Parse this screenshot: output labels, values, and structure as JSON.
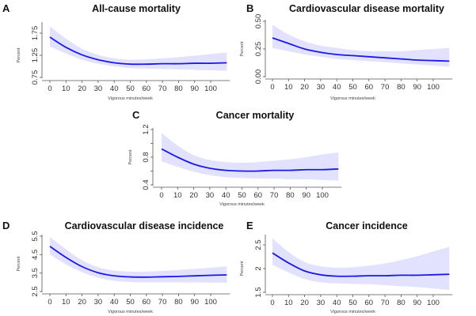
{
  "chart_data": [
    {
      "type": "line",
      "panel": "A",
      "title": "All-cause mortality",
      "xlabel": "Vigorous minutes/week",
      "ylabel": "Percent",
      "xticks": [
        0,
        10,
        20,
        30,
        40,
        50,
        60,
        70,
        80,
        90,
        100
      ],
      "yticks": [
        0.75,
        1.25,
        1.75
      ],
      "ytick_labels": [
        "0.75",
        "1.25",
        "1.75"
      ],
      "xlim": [
        0,
        110
      ],
      "ylim": [
        0.75,
        1.75
      ],
      "series": [
        {
          "name": "estimate",
          "x": [
            0,
            10,
            20,
            30,
            40,
            50,
            60,
            70,
            80,
            90,
            100,
            110
          ],
          "y": [
            1.66,
            1.43,
            1.26,
            1.15,
            1.08,
            1.05,
            1.05,
            1.06,
            1.06,
            1.07,
            1.07,
            1.08
          ]
        }
      ],
      "ci_lower": [
        1.45,
        1.29,
        1.15,
        1.06,
        1.0,
        0.96,
        0.95,
        0.94,
        0.93,
        0.92,
        0.91,
        0.9
      ],
      "ci_upper": [
        1.9,
        1.63,
        1.4,
        1.26,
        1.18,
        1.15,
        1.16,
        1.18,
        1.21,
        1.24,
        1.28,
        1.31
      ]
    },
    {
      "type": "line",
      "panel": "B",
      "title": "Cardiovascular disease mortality",
      "xlabel": "Vigorous minutes/week",
      "ylabel": "Percent",
      "xticks": [
        0,
        10,
        20,
        30,
        40,
        50,
        60,
        70,
        80,
        90,
        100
      ],
      "yticks": [
        0.0,
        0.25,
        0.5
      ],
      "ytick_labels": [
        "0.00",
        "0.25",
        "0.50"
      ],
      "xlim": [
        0,
        110
      ],
      "ylim": [
        0.0,
        0.5
      ],
      "series": [
        {
          "name": "estimate",
          "x": [
            0,
            10,
            20,
            30,
            40,
            50,
            60,
            70,
            80,
            90,
            100,
            110
          ],
          "y": [
            0.35,
            0.3,
            0.25,
            0.22,
            0.2,
            0.19,
            0.18,
            0.17,
            0.16,
            0.15,
            0.145,
            0.14
          ]
        }
      ],
      "ci_lower": [
        0.26,
        0.23,
        0.2,
        0.18,
        0.16,
        0.15,
        0.14,
        0.13,
        0.12,
        0.11,
        0.1,
        0.09
      ],
      "ci_upper": [
        0.47,
        0.38,
        0.32,
        0.28,
        0.26,
        0.24,
        0.23,
        0.23,
        0.23,
        0.24,
        0.25,
        0.26
      ]
    },
    {
      "type": "line",
      "panel": "C",
      "title": "Cancer mortality",
      "xlabel": "Vigorous minutes/week",
      "ylabel": "Percent",
      "xticks": [
        0,
        10,
        20,
        30,
        40,
        50,
        60,
        70,
        80,
        90,
        100
      ],
      "yticks": [
        0.4,
        0.6,
        0.8,
        1.0,
        1.2
      ],
      "ytick_labels": [
        "0.4",
        "",
        "0.8",
        "",
        "1.2"
      ],
      "xlim": [
        0,
        110
      ],
      "ylim": [
        0.4,
        1.2
      ],
      "series": [
        {
          "name": "estimate",
          "x": [
            0,
            10,
            20,
            30,
            40,
            50,
            60,
            70,
            80,
            90,
            100,
            110
          ],
          "y": [
            0.92,
            0.8,
            0.7,
            0.64,
            0.61,
            0.6,
            0.6,
            0.61,
            0.61,
            0.62,
            0.62,
            0.63
          ]
        }
      ],
      "ci_lower": [
        0.74,
        0.66,
        0.59,
        0.54,
        0.51,
        0.5,
        0.49,
        0.49,
        0.48,
        0.48,
        0.47,
        0.46
      ],
      "ci_upper": [
        1.15,
        0.97,
        0.83,
        0.76,
        0.73,
        0.72,
        0.73,
        0.75,
        0.77,
        0.8,
        0.84,
        0.87
      ]
    },
    {
      "type": "line",
      "panel": "D",
      "title": "Cardiovascular disease incidence",
      "xlabel": "Vigorous minutes/week",
      "ylabel": "Percent",
      "xticks": [
        0,
        10,
        20,
        30,
        40,
        50,
        60,
        70,
        80,
        90,
        100
      ],
      "yticks": [
        2.5,
        3.5,
        4.5,
        5.5
      ],
      "ytick_labels": [
        "2.5",
        "3.5",
        "4.5",
        "5.5"
      ],
      "xlim": [
        0,
        110
      ],
      "ylim": [
        2.5,
        5.5
      ],
      "series": [
        {
          "name": "estimate",
          "x": [
            0,
            10,
            20,
            30,
            40,
            50,
            60,
            70,
            80,
            90,
            100,
            110
          ],
          "y": [
            4.95,
            4.35,
            3.85,
            3.52,
            3.35,
            3.29,
            3.28,
            3.3,
            3.32,
            3.35,
            3.38,
            3.4
          ]
        }
      ],
      "ci_lower": [
        4.5,
        3.98,
        3.55,
        3.25,
        3.08,
        3.02,
        3.0,
        3.0,
        3.0,
        2.99,
        2.98,
        2.97
      ],
      "ci_upper": [
        5.45,
        4.8,
        4.2,
        3.82,
        3.64,
        3.58,
        3.58,
        3.62,
        3.67,
        3.73,
        3.79,
        3.86
      ]
    },
    {
      "type": "line",
      "panel": "E",
      "title": "Cancer incidence",
      "xlabel": "Vigorous minutes/week",
      "ylabel": "Percent",
      "xticks": [
        0,
        10,
        20,
        30,
        40,
        50,
        60,
        70,
        80,
        90,
        100
      ],
      "yticks": [
        1.5,
        2.0,
        2.5
      ],
      "ytick_labels": [
        "1.5",
        "2",
        "2.5"
      ],
      "xlim": [
        0,
        110
      ],
      "ylim": [
        1.5,
        2.5
      ],
      "series": [
        {
          "name": "estimate",
          "x": [
            0,
            10,
            20,
            30,
            40,
            50,
            60,
            70,
            80,
            90,
            100,
            110
          ],
          "y": [
            2.33,
            2.12,
            1.95,
            1.87,
            1.84,
            1.84,
            1.85,
            1.85,
            1.86,
            1.86,
            1.87,
            1.88
          ]
        }
      ],
      "ci_lower": [
        2.08,
        1.92,
        1.78,
        1.71,
        1.69,
        1.68,
        1.67,
        1.65,
        1.63,
        1.61,
        1.58,
        1.55
      ],
      "ci_upper": [
        2.64,
        2.35,
        2.14,
        2.05,
        2.02,
        2.03,
        2.06,
        2.11,
        2.18,
        2.26,
        2.36,
        2.46
      ]
    }
  ]
}
